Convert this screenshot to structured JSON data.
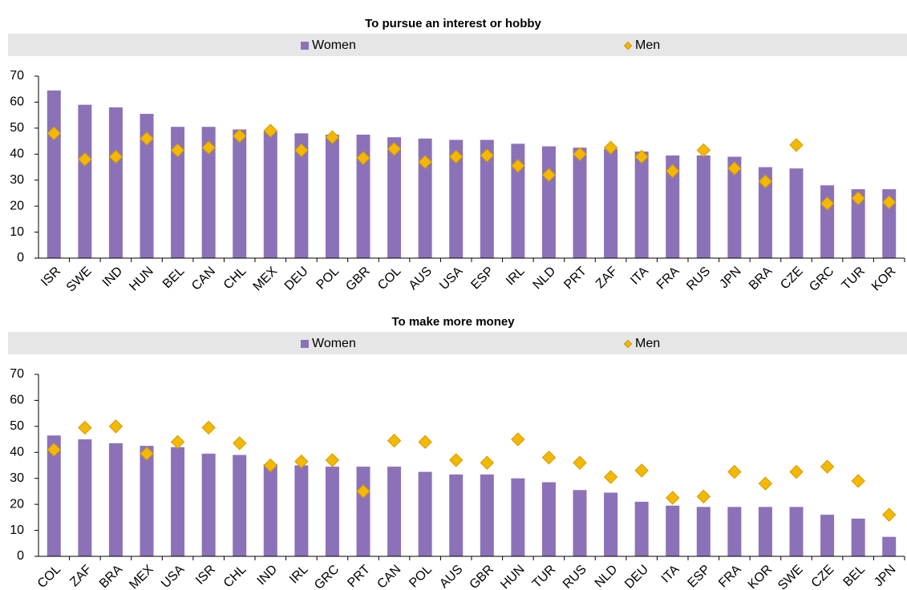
{
  "chart_data": [
    {
      "type": "bar",
      "title": "To pursue an interest or hobby",
      "categories": [
        "ISR",
        "SWE",
        "IND",
        "HUN",
        "BEL",
        "CAN",
        "CHL",
        "MEX",
        "DEU",
        "POL",
        "GBR",
        "COL",
        "AUS",
        "USA",
        "ESP",
        "IRL",
        "NLD",
        "PRT",
        "ZAF",
        "ITA",
        "FRA",
        "RUS",
        "JPN",
        "BRA",
        "CZE",
        "GRC",
        "TUR",
        "KOR"
      ],
      "series": [
        {
          "name": "Women",
          "color": "#8b72b8",
          "mark": "bar",
          "values": [
            64.5,
            59,
            58,
            55.5,
            50.5,
            50.5,
            49.5,
            49,
            48,
            47.5,
            47.5,
            46.5,
            46,
            45.5,
            45.5,
            44,
            43,
            42.5,
            42,
            41,
            39.5,
            39.5,
            39,
            35,
            34.5,
            28,
            26.5,
            26.5
          ]
        },
        {
          "name": "Men",
          "color": "#f5b800",
          "mark": "diamond",
          "values": [
            48,
            38,
            39,
            46,
            41.5,
            42.5,
            47,
            49,
            41.5,
            46.5,
            38.5,
            42,
            37,
            39,
            39.5,
            35.5,
            32,
            40,
            42.5,
            39,
            33.5,
            41.5,
            34.5,
            29.5,
            43.5,
            21,
            23,
            21.5
          ]
        }
      ],
      "ylim": [
        0,
        70
      ],
      "yticks": [
        0,
        10,
        20,
        30,
        40,
        50,
        60,
        70
      ]
    },
    {
      "type": "bar",
      "title": "To make more money",
      "categories": [
        "COL",
        "ZAF",
        "BRA",
        "MEX",
        "USA",
        "ISR",
        "CHL",
        "IND",
        "IRL",
        "GRC",
        "PRT",
        "CAN",
        "POL",
        "AUS",
        "GBR",
        "HUN",
        "TUR",
        "RUS",
        "NLD",
        "DEU",
        "ITA",
        "ESP",
        "FRA",
        "KOR",
        "SWE",
        "CZE",
        "BEL",
        "JPN"
      ],
      "series": [
        {
          "name": "Women",
          "color": "#8b72b8",
          "mark": "bar",
          "values": [
            46.5,
            45,
            43.5,
            42.5,
            42,
            39.5,
            39,
            35.5,
            35,
            34.5,
            34.5,
            34.5,
            32.5,
            31.5,
            31.5,
            30,
            28.5,
            25.5,
            24.5,
            21,
            19.5,
            19,
            19,
            19,
            19,
            16,
            14.5,
            7.5
          ]
        },
        {
          "name": "Men",
          "color": "#f5b800",
          "mark": "diamond",
          "values": [
            41,
            49.5,
            50,
            39.5,
            44,
            49.5,
            43.5,
            35,
            36.5,
            37,
            25,
            44.5,
            44,
            37,
            36,
            45,
            38,
            36,
            30.5,
            33,
            22.5,
            23,
            32.5,
            28,
            32.5,
            34.5,
            29,
            16
          ]
        }
      ],
      "ylim": [
        0,
        70
      ],
      "yticks": [
        0,
        10,
        20,
        30,
        40,
        50,
        60,
        70
      ]
    }
  ]
}
